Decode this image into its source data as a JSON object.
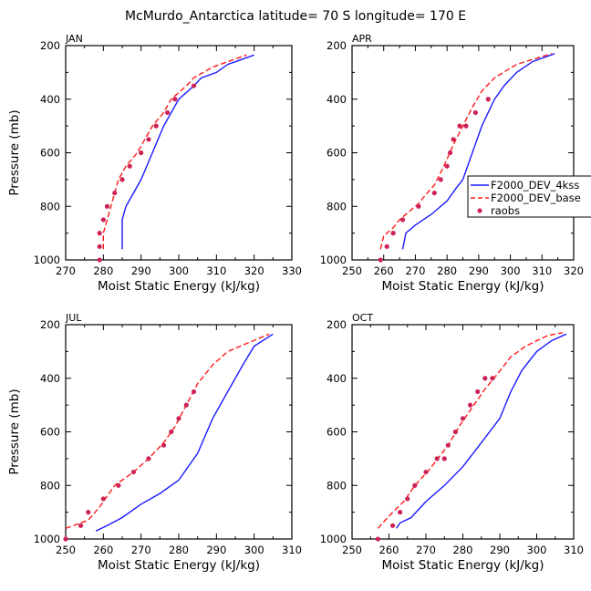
{
  "figure": {
    "title": "McMurdo_Antarctica  latitude= 70 S longitude= 170 E",
    "ylabel": "Pressure (mb)",
    "xlabel": "Moist Static Energy (kJ/kg)"
  },
  "legend": {
    "entries": [
      {
        "label": "F2000_DEV_4kss",
        "color": "#1a1aff",
        "style": "solid"
      },
      {
        "label": "F2000_DEV_base",
        "color": "#ff1a1a",
        "style": "dashed"
      },
      {
        "label": "raobs",
        "color": "#cc2255",
        "style": "dot"
      }
    ]
  },
  "chart_data": [
    {
      "type": "line",
      "title": "JAN",
      "xlim": [
        270,
        330
      ],
      "ylim": [
        1000,
        200
      ],
      "xticks": [
        270,
        280,
        290,
        300,
        310,
        320,
        330
      ],
      "yticks": [
        200,
        400,
        600,
        800,
        1000
      ],
      "series": [
        {
          "name": "F2000_DEV_4kss",
          "points": [
            [
              285,
              960
            ],
            [
              285,
              850
            ],
            [
              286,
              800
            ],
            [
              288,
              750
            ],
            [
              290,
              700
            ],
            [
              293,
              600
            ],
            [
              296,
              500
            ],
            [
              300,
              400
            ],
            [
              304,
              350
            ],
            [
              306,
              320
            ],
            [
              310,
              300
            ],
            [
              313,
              270
            ],
            [
              320,
              235
            ]
          ]
        },
        {
          "name": "F2000_DEV_base",
          "points": [
            [
              280,
              960
            ],
            [
              280,
              900
            ],
            [
              281,
              850
            ],
            [
              282,
              800
            ],
            [
              283,
              750
            ],
            [
              284,
              700
            ],
            [
              286,
              650
            ],
            [
              289,
              600
            ],
            [
              291,
              550
            ],
            [
              293,
              500
            ],
            [
              296,
              450
            ],
            [
              298,
              400
            ],
            [
              302,
              350
            ],
            [
              304,
              320
            ],
            [
              309,
              280
            ],
            [
              318,
              235
            ]
          ]
        },
        {
          "name": "raobs",
          "points": [
            [
              279,
              1000
            ],
            [
              279,
              950
            ],
            [
              279,
              900
            ],
            [
              280,
              850
            ],
            [
              281,
              800
            ],
            [
              283,
              750
            ],
            [
              285,
              700
            ],
            [
              287,
              650
            ],
            [
              290,
              600
            ],
            [
              292,
              550
            ],
            [
              294,
              500
            ],
            [
              297,
              450
            ],
            [
              299,
              400
            ],
            [
              304,
              350
            ]
          ]
        }
      ]
    },
    {
      "type": "line",
      "title": "APR",
      "xlim": [
        250,
        320
      ],
      "ylim": [
        1000,
        200
      ],
      "xticks": [
        250,
        260,
        270,
        280,
        290,
        300,
        310,
        320
      ],
      "yticks": [
        200,
        400,
        600,
        800,
        1000
      ],
      "series": [
        {
          "name": "F2000_DEV_4kss",
          "points": [
            [
              266,
              960
            ],
            [
              267,
              900
            ],
            [
              270,
              870
            ],
            [
              275,
              830
            ],
            [
              280,
              780
            ],
            [
              283,
              730
            ],
            [
              285,
              700
            ],
            [
              288,
              600
            ],
            [
              291,
              500
            ],
            [
              295,
              400
            ],
            [
              298,
              350
            ],
            [
              302,
              300
            ],
            [
              307,
              260
            ],
            [
              314,
              230
            ]
          ]
        },
        {
          "name": "F2000_DEV_base",
          "points": [
            [
              259,
              960
            ],
            [
              260,
              910
            ],
            [
              263,
              880
            ],
            [
              265,
              850
            ],
            [
              268,
              820
            ],
            [
              271,
              790
            ],
            [
              273,
              760
            ],
            [
              276,
              720
            ],
            [
              279,
              650
            ],
            [
              282,
              570
            ],
            [
              285,
              500
            ],
            [
              288,
              430
            ],
            [
              291,
              370
            ],
            [
              295,
              320
            ],
            [
              302,
              270
            ],
            [
              313,
              230
            ]
          ]
        },
        {
          "name": "raobs",
          "points": [
            [
              259,
              1000
            ],
            [
              261,
              950
            ],
            [
              263,
              900
            ],
            [
              266,
              850
            ],
            [
              271,
              800
            ],
            [
              276,
              750
            ],
            [
              278,
              700
            ],
            [
              280,
              650
            ],
            [
              281,
              600
            ],
            [
              282,
              550
            ],
            [
              284,
              500
            ],
            [
              286,
              500
            ],
            [
              289,
              450
            ],
            [
              293,
              400
            ]
          ]
        }
      ]
    },
    {
      "type": "line",
      "title": "JUL",
      "xlim": [
        250,
        310
      ],
      "ylim": [
        1000,
        200
      ],
      "xticks": [
        250,
        260,
        270,
        280,
        290,
        300,
        310
      ],
      "yticks": [
        200,
        400,
        600,
        800,
        1000
      ],
      "series": [
        {
          "name": "F2000_DEV_4kss",
          "points": [
            [
              258,
              970
            ],
            [
              261,
              950
            ],
            [
              265,
              920
            ],
            [
              270,
              870
            ],
            [
              275,
              830
            ],
            [
              280,
              780
            ],
            [
              285,
              680
            ],
            [
              289,
              550
            ],
            [
              293,
              450
            ],
            [
              297,
              350
            ],
            [
              300,
              280
            ],
            [
              305,
              235
            ]
          ]
        },
        {
          "name": "F2000_DEV_base",
          "points": [
            [
              250,
              960
            ],
            [
              256,
              930
            ],
            [
              259,
              880
            ],
            [
              263,
              800
            ],
            [
              268,
              750
            ],
            [
              272,
              700
            ],
            [
              276,
              640
            ],
            [
              279,
              580
            ],
            [
              282,
              500
            ],
            [
              285,
              420
            ],
            [
              289,
              350
            ],
            [
              293,
              300
            ],
            [
              298,
              270
            ],
            [
              304,
              235
            ]
          ]
        },
        {
          "name": "raobs",
          "points": [
            [
              250,
              1000
            ],
            [
              254,
              950
            ],
            [
              256,
              900
            ],
            [
              260,
              850
            ],
            [
              264,
              800
            ],
            [
              268,
              750
            ],
            [
              272,
              700
            ],
            [
              276,
              650
            ],
            [
              278,
              600
            ],
            [
              280,
              550
            ],
            [
              282,
              500
            ],
            [
              284,
              450
            ]
          ]
        }
      ]
    },
    {
      "type": "line",
      "title": "OCT",
      "xlim": [
        250,
        310
      ],
      "ylim": [
        1000,
        200
      ],
      "xticks": [
        250,
        260,
        270,
        280,
        290,
        300,
        310
      ],
      "yticks": [
        200,
        400,
        600,
        800,
        1000
      ],
      "series": [
        {
          "name": "F2000_DEV_4kss",
          "points": [
            [
              262,
              960
            ],
            [
              263,
              940
            ],
            [
              266,
              920
            ],
            [
              270,
              860
            ],
            [
              275,
              800
            ],
            [
              280,
              730
            ],
            [
              285,
              640
            ],
            [
              290,
              550
            ],
            [
              293,
              450
            ],
            [
              296,
              370
            ],
            [
              300,
              300
            ],
            [
              304,
              260
            ],
            [
              308,
              235
            ]
          ]
        },
        {
          "name": "F2000_DEV_base",
          "points": [
            [
              257,
              960
            ],
            [
              259,
              930
            ],
            [
              261,
              900
            ],
            [
              264,
              860
            ],
            [
              267,
              800
            ],
            [
              271,
              740
            ],
            [
              276,
              650
            ],
            [
              279,
              580
            ],
            [
              283,
              500
            ],
            [
              286,
              440
            ],
            [
              289,
              390
            ],
            [
              293,
              320
            ],
            [
              297,
              280
            ],
            [
              303,
              240
            ],
            [
              307,
              230
            ]
          ]
        },
        {
          "name": "raobs",
          "points": [
            [
              257,
              1000
            ],
            [
              261,
              950
            ],
            [
              263,
              900
            ],
            [
              265,
              850
            ],
            [
              267,
              800
            ],
            [
              270,
              750
            ],
            [
              273,
              700
            ],
            [
              275,
              700
            ],
            [
              276,
              650
            ],
            [
              278,
              600
            ],
            [
              280,
              550
            ],
            [
              282,
              500
            ],
            [
              284,
              450
            ],
            [
              286,
              400
            ],
            [
              288,
              400
            ]
          ]
        }
      ]
    }
  ]
}
